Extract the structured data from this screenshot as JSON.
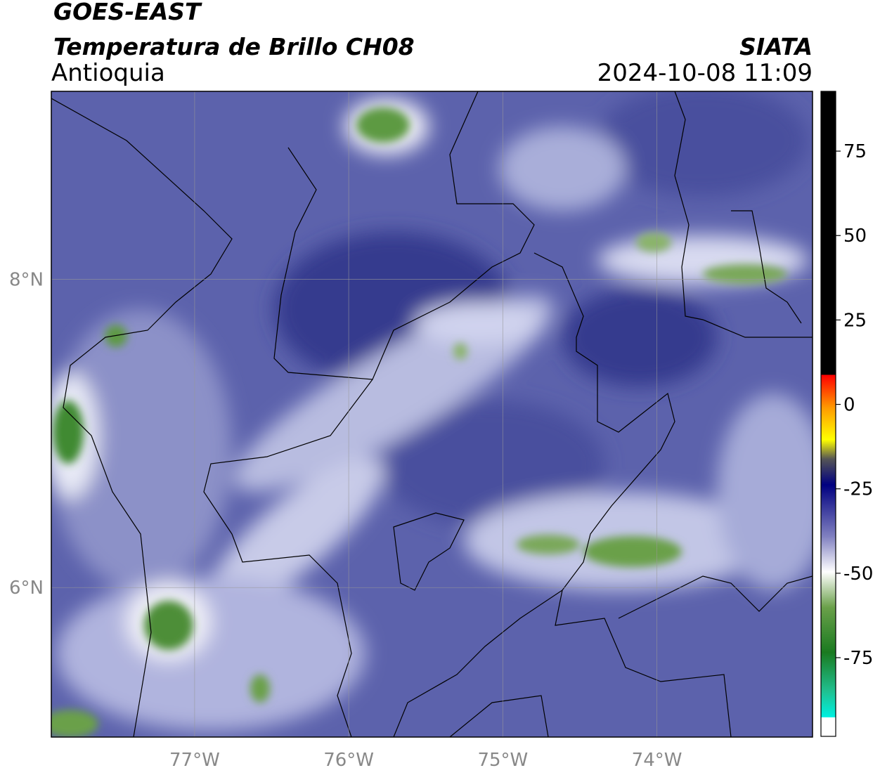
{
  "header": {
    "satellite": "GOES-EAST",
    "title": "Temperatura de Brillo CH08",
    "region": "Antioquia",
    "source": "SIATA",
    "datetime": "2024-10-08 11:09"
  },
  "map": {
    "xlim": [
      -77.93,
      -72.99
    ],
    "ylim": [
      5.03,
      9.22
    ],
    "xticks": [
      {
        "value": -77,
        "label": "77°W"
      },
      {
        "value": -76,
        "label": "76°W"
      },
      {
        "value": -75,
        "label": "75°W"
      },
      {
        "value": -74,
        "label": "74°W"
      }
    ],
    "yticks": [
      {
        "value": 6,
        "label": "6°N"
      },
      {
        "value": 8,
        "label": "8°N"
      }
    ],
    "grid": true,
    "grid_color": "#999999"
  },
  "colorbar": {
    "lim": [
      -98.3,
      92.7
    ],
    "ticks": [
      75,
      50,
      25,
      0,
      -25,
      -50,
      -75
    ]
  }
}
